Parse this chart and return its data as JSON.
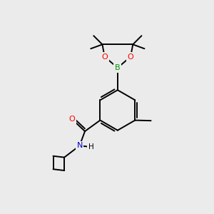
{
  "background_color": "#ebebeb",
  "atom_colors": {
    "O": "#ff0000",
    "N": "#0000cc",
    "B": "#009900"
  },
  "bond_color": "#000000",
  "bond_width": 1.4,
  "fig_width": 3.0,
  "fig_height": 3.0,
  "dpi": 100
}
